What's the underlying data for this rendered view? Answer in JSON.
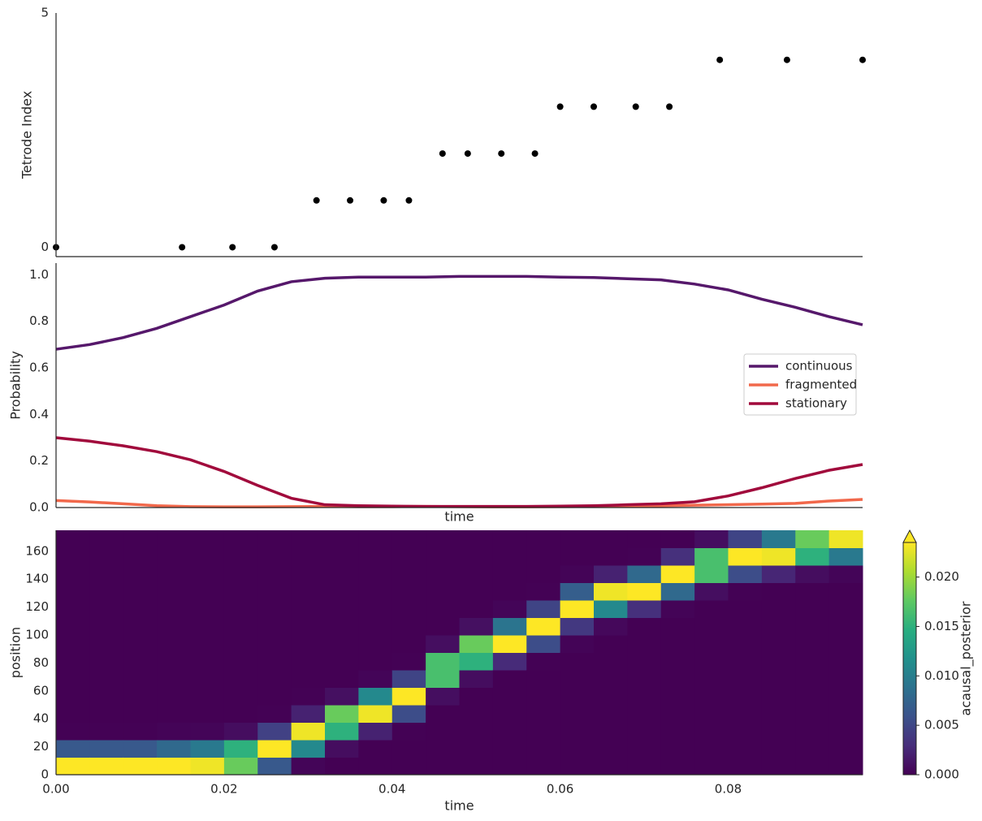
{
  "chart_data": [
    {
      "type": "scatter",
      "ylabel": "Tetrode Index",
      "x": [
        0.0,
        0.015,
        0.021,
        0.026,
        0.031,
        0.035,
        0.039,
        0.042,
        0.046,
        0.049,
        0.053,
        0.057,
        0.06,
        0.064,
        0.069,
        0.073,
        0.079,
        0.087,
        0.096
      ],
      "values": [
        0,
        0,
        0,
        0,
        1,
        1,
        1,
        1,
        2,
        2,
        2,
        2,
        3,
        3,
        3,
        3,
        4,
        4,
        4
      ],
      "color": "#000000",
      "xlim": [
        0,
        0.096
      ],
      "ylim": [
        -0.2,
        5
      ],
      "yticks": [
        0,
        5
      ]
    },
    {
      "type": "line",
      "ylabel": "Probability",
      "xlabel": "time",
      "x": [
        0,
        0.004,
        0.008,
        0.012,
        0.016,
        0.02,
        0.024,
        0.028,
        0.032,
        0.036,
        0.04,
        0.044,
        0.048,
        0.052,
        0.056,
        0.06,
        0.064,
        0.068,
        0.072,
        0.076,
        0.08,
        0.084,
        0.088,
        0.092,
        0.096
      ],
      "series": [
        {
          "name": "continuous",
          "color": "#56186b",
          "values": [
            0.68,
            0.7,
            0.73,
            0.77,
            0.82,
            0.87,
            0.93,
            0.97,
            0.985,
            0.99,
            0.99,
            0.99,
            0.993,
            0.993,
            0.993,
            0.99,
            0.988,
            0.983,
            0.978,
            0.96,
            0.935,
            0.895,
            0.86,
            0.82,
            0.785
          ]
        },
        {
          "name": "fragmented",
          "color": "#f1684b",
          "values": [
            0.03,
            0.024,
            0.016,
            0.008,
            0.004,
            0.003,
            0.003,
            0.004,
            0.005,
            0.004,
            0.004,
            0.005,
            0.004,
            0.003,
            0.003,
            0.004,
            0.005,
            0.006,
            0.008,
            0.01,
            0.012,
            0.015,
            0.018,
            0.028,
            0.035
          ]
        },
        {
          "name": "stationary",
          "color": "#a10a3c",
          "values": [
            0.3,
            0.285,
            0.265,
            0.24,
            0.205,
            0.155,
            0.095,
            0.04,
            0.012,
            0.008,
            0.006,
            0.005,
            0.005,
            0.005,
            0.005,
            0.006,
            0.008,
            0.012,
            0.016,
            0.025,
            0.05,
            0.085,
            0.125,
            0.16,
            0.185
          ]
        }
      ],
      "xlim": [
        0,
        0.096
      ],
      "ylim": [
        0,
        1.05
      ],
      "yticks": [
        {
          "value": 0,
          "label": "0.0"
        },
        0.2,
        0.4,
        0.6,
        0.8,
        {
          "value": 1,
          "label": "1.0"
        }
      ],
      "legend": "right"
    },
    {
      "type": "heatmap",
      "xlabel": "time",
      "ylabel": "position",
      "colorbar_label": "acausal_posterior",
      "xbins": [
        0,
        0.004,
        0.008,
        0.012,
        0.016,
        0.02,
        0.024,
        0.028,
        0.032,
        0.036,
        0.04,
        0.044,
        0.048,
        0.052,
        0.056,
        0.06,
        0.064,
        0.068,
        0.072,
        0.076,
        0.08,
        0.084,
        0.088,
        0.092,
        0.096
      ],
      "ybins": [
        0,
        12.5,
        25,
        37.5,
        50,
        62.5,
        75,
        87.5,
        100,
        112.5,
        125,
        137.5,
        150,
        162.5,
        175
      ],
      "z": [
        [
          0.025,
          0.0065,
          0.0001,
          0,
          0,
          0,
          0,
          0,
          0,
          0,
          0,
          0,
          0,
          0
        ],
        [
          0.025,
          0.0065,
          0.0001,
          0,
          0,
          0,
          0,
          0,
          0,
          0,
          0,
          0,
          0,
          0
        ],
        [
          0.025,
          0.0065,
          0.0001,
          0,
          0,
          0,
          0,
          0,
          0,
          0,
          0,
          0,
          0,
          0
        ],
        [
          0.024,
          0.008,
          0.0002,
          0,
          0,
          0,
          0,
          0,
          0,
          0,
          0,
          0,
          0,
          0
        ],
        [
          0.023,
          0.0095,
          0.0003,
          0,
          0,
          0,
          0,
          0,
          0,
          0,
          0,
          0,
          0,
          0
        ],
        [
          0.018,
          0.015,
          0.0008,
          0,
          0,
          0,
          0,
          0,
          0,
          0,
          0,
          0,
          0,
          0
        ],
        [
          0.0065,
          0.025,
          0.0045,
          0.0001,
          0,
          0,
          0,
          0,
          0,
          0,
          0,
          0,
          0,
          0
        ],
        [
          0.0003,
          0.011,
          0.023,
          0.0022,
          0.0001,
          0,
          0,
          0,
          0,
          0,
          0,
          0,
          0,
          0
        ],
        [
          0,
          0.0008,
          0.015,
          0.018,
          0.001,
          0,
          0,
          0,
          0,
          0,
          0,
          0,
          0,
          0
        ],
        [
          0,
          0,
          0.0022,
          0.023,
          0.011,
          0.0003,
          0,
          0,
          0,
          0,
          0,
          0,
          0,
          0
        ],
        [
          0,
          0,
          0.0001,
          0.0055,
          0.025,
          0.0048,
          0.0001,
          0,
          0,
          0,
          0,
          0,
          0,
          0
        ],
        [
          0,
          0,
          0,
          0,
          0.0009,
          0.0165,
          0.0165,
          0.0009,
          0,
          0,
          0,
          0,
          0,
          0
        ],
        [
          0,
          0,
          0,
          0,
          0,
          0.0008,
          0.015,
          0.018,
          0.001,
          0,
          0,
          0,
          0,
          0
        ],
        [
          0,
          0,
          0,
          0,
          0,
          0,
          0.0028,
          0.024,
          0.009,
          0.0003,
          0,
          0,
          0,
          0
        ],
        [
          0,
          0,
          0,
          0,
          0,
          0,
          0.0001,
          0.0055,
          0.025,
          0.0048,
          0.0001,
          0,
          0,
          0
        ],
        [
          0,
          0,
          0,
          0,
          0,
          0,
          0,
          0.0002,
          0.0038,
          0.0245,
          0.007,
          0.0002,
          0,
          0
        ],
        [
          0,
          0,
          0,
          0,
          0,
          0,
          0,
          0,
          0.0005,
          0.011,
          0.023,
          0.0022,
          0,
          0
        ],
        [
          0,
          0,
          0,
          0,
          0,
          0,
          0,
          0,
          0,
          0.0032,
          0.024,
          0.008,
          0.0001,
          0
        ],
        [
          0,
          0,
          0,
          0,
          0,
          0,
          0,
          0,
          0,
          0.0002,
          0.008,
          0.024,
          0.0032,
          0
        ],
        [
          0,
          0,
          0,
          0,
          0,
          0,
          0,
          0,
          0,
          0,
          0.0009,
          0.0165,
          0.0165,
          0.0009
        ],
        [
          0,
          0,
          0,
          0,
          0,
          0,
          0,
          0,
          0,
          0,
          0.0001,
          0.0055,
          0.025,
          0.0048
        ],
        [
          0,
          0,
          0,
          0,
          0,
          0,
          0,
          0,
          0,
          0,
          0,
          0.0025,
          0.023,
          0.0095
        ],
        [
          0,
          0,
          0,
          0,
          0,
          0,
          0,
          0,
          0,
          0,
          0,
          0.0008,
          0.015,
          0.018
        ],
        [
          0,
          0,
          0,
          0,
          0,
          0,
          0,
          0,
          0,
          0,
          0,
          0.0003,
          0.0095,
          0.023
        ]
      ],
      "xlim": [
        0,
        0.096
      ],
      "ylim": [
        0,
        175
      ],
      "xticks": [
        {
          "value": 0,
          "label": "0.00"
        },
        {
          "value": 0.02,
          "label": "0.02"
        },
        {
          "value": 0.04,
          "label": "0.04"
        },
        {
          "value": 0.06,
          "label": "0.06"
        },
        {
          "value": 0.08,
          "label": "0.08"
        }
      ],
      "yticks": [
        0,
        20,
        40,
        60,
        80,
        100,
        120,
        140,
        160
      ],
      "clim": [
        0,
        0.0235
      ],
      "cticks": [
        {
          "value": 0,
          "label": "0.000"
        },
        {
          "value": 0.005,
          "label": "0.005"
        },
        {
          "value": 0.01,
          "label": "0.010"
        },
        {
          "value": 0.015,
          "label": "0.015"
        },
        {
          "value": 0.02,
          "label": "0.020"
        }
      ],
      "colormap": "viridis"
    }
  ]
}
